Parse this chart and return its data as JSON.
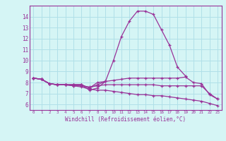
{
  "title": "",
  "xlabel": "Windchill (Refroidissement éolien,°C)",
  "x_values": [
    0,
    1,
    2,
    3,
    4,
    5,
    6,
    7,
    8,
    9,
    10,
    11,
    12,
    13,
    14,
    15,
    16,
    17,
    18,
    19,
    20,
    21,
    22,
    23
  ],
  "curve1": [
    8.4,
    8.3,
    7.9,
    7.8,
    7.8,
    7.8,
    7.8,
    7.5,
    8.0,
    8.1,
    10.0,
    12.2,
    13.6,
    14.5,
    14.5,
    14.2,
    12.8,
    11.4,
    9.4,
    8.6,
    null,
    null,
    null,
    null
  ],
  "curve2": [
    8.4,
    8.3,
    7.9,
    7.8,
    7.8,
    7.8,
    7.8,
    7.3,
    7.5,
    8.1,
    null,
    null,
    null,
    null,
    null,
    null,
    null,
    null,
    null,
    null,
    null,
    null,
    null,
    null
  ],
  "curve3": [
    8.4,
    8.3,
    7.9,
    7.8,
    7.8,
    7.8,
    7.8,
    7.5,
    7.8,
    8.1,
    8.2,
    8.3,
    8.4,
    8.4,
    8.4,
    8.4,
    8.4,
    8.4,
    8.4,
    8.5,
    8.0,
    7.9,
    6.9,
    6.5
  ],
  "curve4": [
    8.4,
    8.3,
    7.9,
    7.8,
    7.8,
    7.7,
    7.7,
    7.6,
    7.7,
    7.8,
    7.8,
    7.8,
    7.8,
    7.8,
    7.8,
    7.8,
    7.7,
    7.7,
    7.7,
    7.7,
    7.7,
    7.7,
    7.0,
    6.5
  ],
  "curve5": [
    8.4,
    8.3,
    7.9,
    7.8,
    7.8,
    7.7,
    7.6,
    7.4,
    7.3,
    7.3,
    7.2,
    7.1,
    7.0,
    6.9,
    6.9,
    6.8,
    6.8,
    6.7,
    6.6,
    6.5,
    6.4,
    6.3,
    6.1,
    5.9
  ],
  "line_color": "#993399",
  "bg_color": "#d5f5f5",
  "grid_color": "#b0e0e8",
  "ylim": [
    5.5,
    15.0
  ],
  "xlim": [
    -0.5,
    23.5
  ],
  "yticks": [
    6,
    7,
    8,
    9,
    10,
    11,
    12,
    13,
    14
  ],
  "xticks": [
    0,
    1,
    2,
    3,
    4,
    5,
    6,
    7,
    8,
    9,
    10,
    11,
    12,
    13,
    14,
    15,
    16,
    17,
    18,
    19,
    20,
    21,
    22,
    23
  ]
}
